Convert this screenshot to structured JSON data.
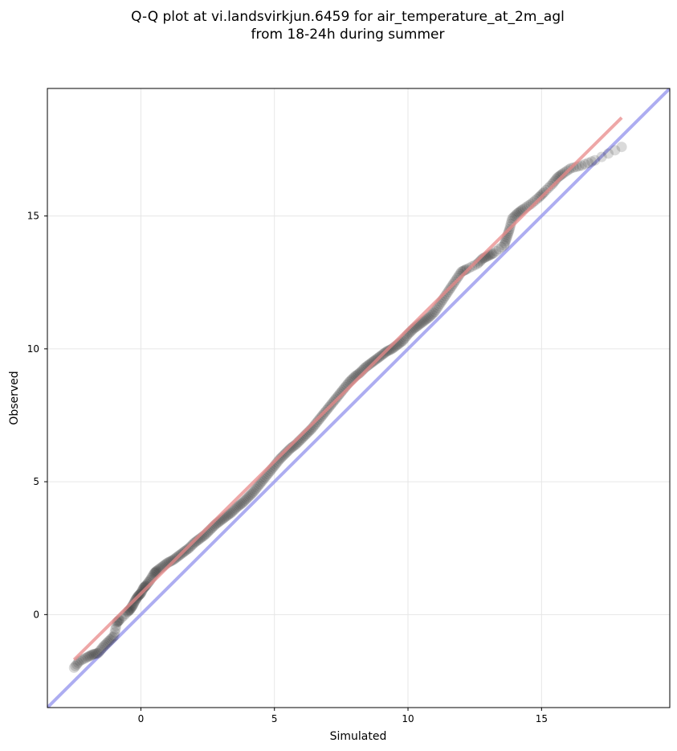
{
  "chart_data": {
    "type": "scatter",
    "title_line1": "Q-Q plot at vi.landsvirkjun.6459 for air_temperature_at_2m_agl",
    "title_line2": "from 18-24h during summer",
    "xlabel": "Simulated",
    "ylabel": "Observed",
    "xlim": [
      -3.5,
      19.8
    ],
    "ylim": [
      -3.5,
      19.8
    ],
    "xticks": [
      0,
      5,
      10,
      15
    ],
    "yticks": [
      0,
      5,
      10,
      15
    ],
    "grid": true,
    "identity_line": {
      "from": [
        -3.5,
        -3.5
      ],
      "to": [
        19.8,
        19.8
      ],
      "color": "#aaaaee"
    },
    "fit_line": {
      "from": [
        -2.5,
        -1.7
      ],
      "to": [
        18.0,
        18.7
      ],
      "color": "#ee9999"
    },
    "colors": {
      "points": "#333333",
      "fit": "#e88a8a",
      "identity": "#9999ee",
      "grid": "#e6e6e6"
    },
    "points": [
      [
        -2.5,
        -2.0
      ],
      [
        -2.3,
        -1.75
      ],
      [
        -2.0,
        -1.6
      ],
      [
        -1.8,
        -1.5
      ],
      [
        -1.6,
        -1.45
      ],
      [
        -1.4,
        -1.2
      ],
      [
        -1.2,
        -1.0
      ],
      [
        -1.0,
        -0.8
      ],
      [
        -0.9,
        -0.3
      ],
      [
        -0.8,
        -0.2
      ],
      [
        -0.5,
        0.1
      ],
      [
        -0.4,
        0.2
      ],
      [
        -0.3,
        0.35
      ],
      [
        -0.2,
        0.55
      ],
      [
        -0.1,
        0.7
      ],
      [
        0.0,
        0.8
      ],
      [
        0.1,
        1.0
      ],
      [
        0.2,
        1.1
      ],
      [
        0.35,
        1.3
      ],
      [
        0.5,
        1.55
      ],
      [
        0.6,
        1.65
      ],
      [
        0.8,
        1.8
      ],
      [
        1.0,
        1.95
      ],
      [
        1.2,
        2.05
      ],
      [
        1.4,
        2.2
      ],
      [
        1.6,
        2.35
      ],
      [
        1.8,
        2.5
      ],
      [
        2.0,
        2.7
      ],
      [
        2.2,
        2.85
      ],
      [
        2.4,
        3.0
      ],
      [
        2.6,
        3.2
      ],
      [
        2.8,
        3.4
      ],
      [
        3.0,
        3.55
      ],
      [
        3.2,
        3.7
      ],
      [
        3.4,
        3.85
      ],
      [
        3.6,
        4.05
      ],
      [
        3.8,
        4.2
      ],
      [
        4.0,
        4.4
      ],
      [
        4.2,
        4.6
      ],
      [
        4.4,
        4.85
      ],
      [
        4.6,
        5.1
      ],
      [
        4.8,
        5.35
      ],
      [
        5.0,
        5.6
      ],
      [
        5.2,
        5.85
      ],
      [
        5.4,
        6.05
      ],
      [
        5.6,
        6.25
      ],
      [
        5.8,
        6.4
      ],
      [
        6.0,
        6.6
      ],
      [
        6.2,
        6.8
      ],
      [
        6.4,
        7.0
      ],
      [
        6.6,
        7.25
      ],
      [
        6.8,
        7.5
      ],
      [
        7.0,
        7.75
      ],
      [
        7.2,
        8.0
      ],
      [
        7.4,
        8.25
      ],
      [
        7.6,
        8.5
      ],
      [
        7.8,
        8.75
      ],
      [
        8.0,
        8.95
      ],
      [
        8.2,
        9.1
      ],
      [
        8.4,
        9.3
      ],
      [
        8.6,
        9.45
      ],
      [
        8.8,
        9.6
      ],
      [
        9.0,
        9.75
      ],
      [
        9.2,
        9.9
      ],
      [
        9.4,
        10.0
      ],
      [
        9.6,
        10.15
      ],
      [
        9.8,
        10.3
      ],
      [
        10.0,
        10.55
      ],
      [
        10.2,
        10.75
      ],
      [
        10.4,
        10.9
      ],
      [
        10.6,
        11.05
      ],
      [
        10.8,
        11.2
      ],
      [
        11.0,
        11.4
      ],
      [
        11.2,
        11.7
      ],
      [
        11.4,
        12.0
      ],
      [
        11.6,
        12.3
      ],
      [
        11.8,
        12.6
      ],
      [
        12.0,
        12.9
      ],
      [
        12.2,
        13.0
      ],
      [
        12.6,
        13.2
      ],
      [
        12.8,
        13.4
      ],
      [
        13.0,
        13.5
      ],
      [
        13.2,
        13.6
      ],
      [
        13.6,
        13.9
      ],
      [
        13.7,
        14.2
      ],
      [
        13.8,
        14.5
      ],
      [
        13.9,
        14.9
      ],
      [
        14.1,
        15.1
      ],
      [
        14.3,
        15.25
      ],
      [
        14.6,
        15.45
      ],
      [
        14.9,
        15.7
      ],
      [
        15.1,
        15.9
      ],
      [
        15.4,
        16.2
      ],
      [
        15.6,
        16.45
      ],
      [
        15.8,
        16.6
      ],
      [
        16.1,
        16.8
      ],
      [
        16.5,
        16.9
      ],
      [
        17.0,
        17.1
      ],
      [
        18.0,
        17.6
      ]
    ]
  }
}
